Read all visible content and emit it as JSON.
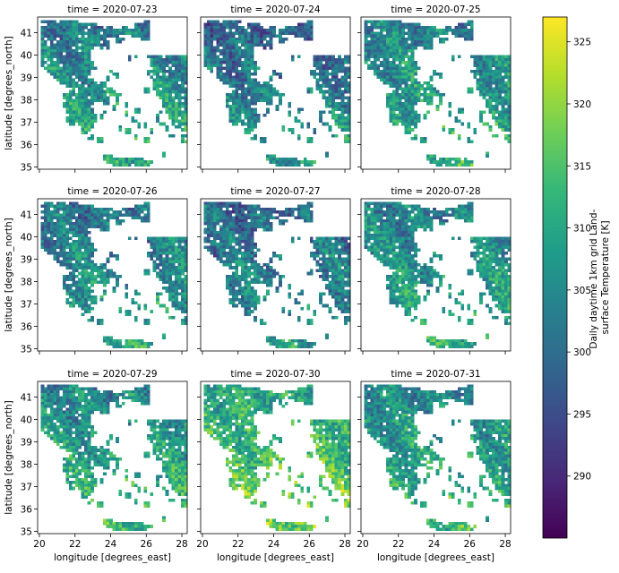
{
  "chart_data": {
    "type": "heatmap",
    "description_type": "faceted geospatial raster (3x3 small multiples)",
    "panels": [
      {
        "title": "time = 2020-07-23",
        "mean_level": 0.52
      },
      {
        "title": "time = 2020-07-24",
        "mean_level": 0.44
      },
      {
        "title": "time = 2020-07-25",
        "mean_level": 0.55
      },
      {
        "title": "time = 2020-07-26",
        "mean_level": 0.5
      },
      {
        "title": "time = 2020-07-27",
        "mean_level": 0.45
      },
      {
        "title": "time = 2020-07-28",
        "mean_level": 0.54
      },
      {
        "title": "time = 2020-07-29",
        "mean_level": 0.57
      },
      {
        "title": "time = 2020-07-30",
        "mean_level": 0.7
      },
      {
        "title": "time = 2020-07-31",
        "mean_level": 0.58
      }
    ],
    "xlabel": "longitude [degrees_east]",
    "ylabel": "latitude [degrees_north]",
    "xlim": [
      19.9,
      28.3
    ],
    "ylim": [
      34.9,
      41.7
    ],
    "xticks": [
      20,
      22,
      24,
      26,
      28
    ],
    "yticks": [
      35,
      36,
      37,
      38,
      39,
      40,
      41
    ],
    "colorbar": {
      "label": "Daily daytime 1km grid Land-surface Temperature [K]",
      "label_lines": [
        "Daily daytime 1km grid Land-",
        "surface Temperature [K]"
      ],
      "range": [
        285,
        327
      ],
      "ticks": [
        290,
        295,
        300,
        305,
        310,
        315,
        320,
        325
      ],
      "colormap": "viridis"
    },
    "grid": false
  },
  "colors": {
    "viridis": [
      "#440154",
      "#482878",
      "#3e4989",
      "#31688e",
      "#26828e",
      "#1f9e89",
      "#35b779",
      "#6ece58",
      "#b5de2b",
      "#fde725"
    ]
  }
}
